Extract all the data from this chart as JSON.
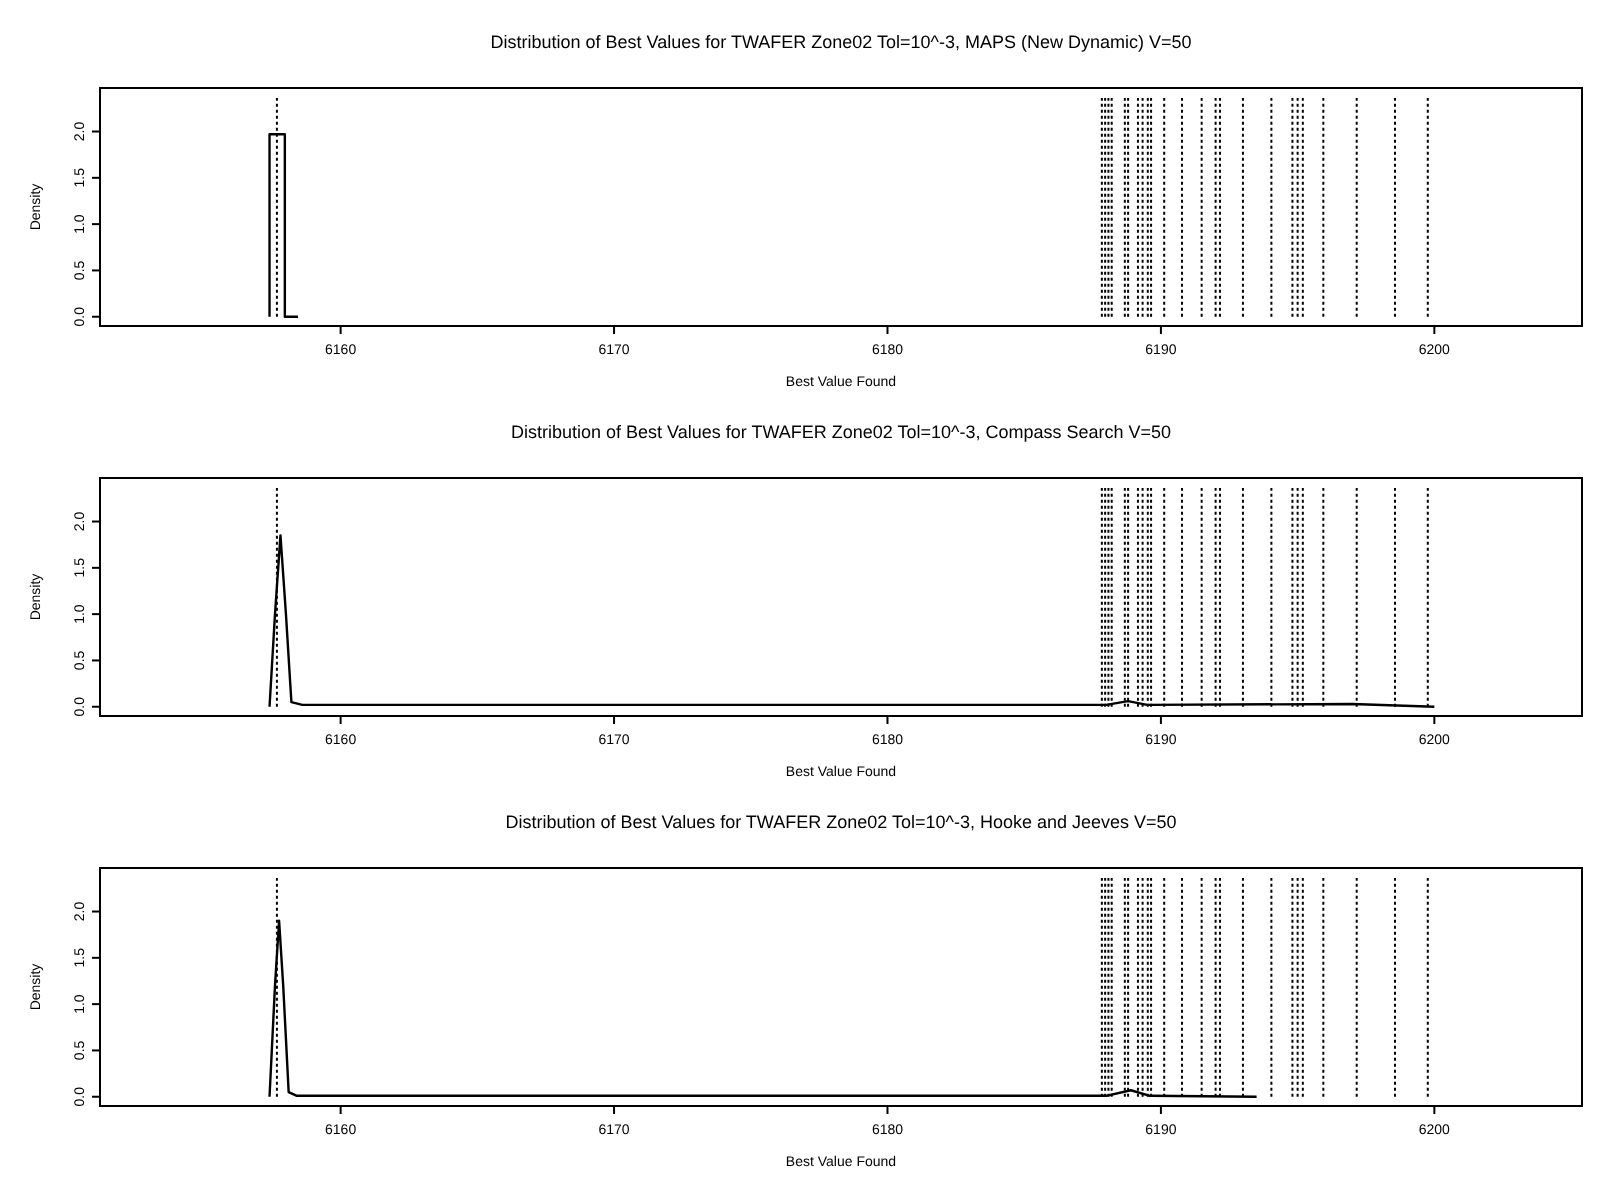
{
  "chart_data": [
    {
      "type": "line",
      "title": "Distribution of Best Values for TWAFER Zone02 Tol=10^-3, MAPS (New Dynamic) V=50",
      "xlabel": "Best Value Found",
      "ylabel": "Density",
      "xlim": [
        6151.2,
        6205.4
      ],
      "ylim": [
        -0.1,
        2.47
      ],
      "xticks": [
        6160,
        6170,
        6180,
        6190,
        6200
      ],
      "yticks": [
        {
          "value": 0,
          "label": "0.0"
        },
        {
          "value": 0.5,
          "label": "0.5"
        },
        {
          "value": 1,
          "label": "1.0"
        },
        {
          "value": 1.5,
          "label": "1.5"
        },
        {
          "value": 2,
          "label": "2.0"
        }
      ],
      "grid": false,
      "marker": "none",
      "line_style": "solid",
      "series": [
        {
          "color": "#000000",
          "x": [
            6157.4,
            6157.4,
            6157.96,
            6157.96,
            6158.44
          ],
          "values": [
            0,
            1.97,
            1.97,
            0,
            0
          ]
        }
      ],
      "ref_lines": [
        {
          "axis": "x",
          "value": 6157.67,
          "line_style": "dotted"
        },
        {
          "axis": "x",
          "value": 6187.84,
          "line_style": "dotted"
        },
        {
          "axis": "x",
          "value": 6187.96,
          "line_style": "dotted"
        },
        {
          "axis": "x",
          "value": 6188.08,
          "line_style": "dotted"
        },
        {
          "axis": "x",
          "value": 6188.2,
          "line_style": "dotted"
        },
        {
          "axis": "x",
          "value": 6188.68,
          "line_style": "dotted"
        },
        {
          "axis": "x",
          "value": 6188.8,
          "line_style": "dotted"
        },
        {
          "axis": "x",
          "value": 6189.16,
          "line_style": "dotted"
        },
        {
          "axis": "x",
          "value": 6189.33,
          "line_style": "dotted"
        },
        {
          "axis": "x",
          "value": 6189.52,
          "line_style": "dotted"
        },
        {
          "axis": "x",
          "value": 6189.64,
          "line_style": "dotted"
        },
        {
          "axis": "x",
          "value": 6190.12,
          "line_style": "dotted"
        },
        {
          "axis": "x",
          "value": 6190.77,
          "line_style": "dotted"
        },
        {
          "axis": "x",
          "value": 6191.49,
          "line_style": "dotted"
        },
        {
          "axis": "x",
          "value": 6192.0,
          "line_style": "dotted"
        },
        {
          "axis": "x",
          "value": 6192.16,
          "line_style": "dotted"
        },
        {
          "axis": "x",
          "value": 6193.0,
          "line_style": "dotted"
        },
        {
          "axis": "x",
          "value": 6194.04,
          "line_style": "dotted"
        },
        {
          "axis": "x",
          "value": 6194.81,
          "line_style": "dotted"
        },
        {
          "axis": "x",
          "value": 6195.0,
          "line_style": "dotted"
        },
        {
          "axis": "x",
          "value": 6195.19,
          "line_style": "dotted"
        },
        {
          "axis": "x",
          "value": 6195.94,
          "line_style": "dotted"
        },
        {
          "axis": "x",
          "value": 6197.16,
          "line_style": "dotted"
        },
        {
          "axis": "x",
          "value": 6198.56,
          "line_style": "dotted"
        },
        {
          "axis": "x",
          "value": 6199.76,
          "line_style": "dotted"
        }
      ]
    },
    {
      "type": "line",
      "title": "Distribution of Best Values for TWAFER Zone02 Tol=10^-3, Compass Search V=50",
      "xlabel": "Best Value Found",
      "ylabel": "Density",
      "xlim": [
        6151.2,
        6205.4
      ],
      "ylim": [
        -0.1,
        2.47
      ],
      "xticks": [
        6160,
        6170,
        6180,
        6190,
        6200
      ],
      "yticks": [
        {
          "value": 0,
          "label": "0.0"
        },
        {
          "value": 0.5,
          "label": "0.5"
        },
        {
          "value": 1,
          "label": "1.0"
        },
        {
          "value": 1.5,
          "label": "1.5"
        },
        {
          "value": 2,
          "label": "2.0"
        }
      ],
      "grid": false,
      "marker": "none",
      "line_style": "solid",
      "series": [
        {
          "color": "#000000",
          "x": [
            6157.4,
            6157.6,
            6157.8,
            6158.0,
            6158.2,
            6158.6,
            6188,
            6188.8,
            6189.5,
            6197,
            6200
          ],
          "values": [
            0,
            1.0,
            1.85,
            1.0,
            0.05,
            0.02,
            0.02,
            0.06,
            0.02,
            0.03,
            0
          ]
        }
      ],
      "ref_lines": [
        {
          "axis": "x",
          "value": 6157.67,
          "line_style": "dotted"
        },
        {
          "axis": "x",
          "value": 6187.84,
          "line_style": "dotted"
        },
        {
          "axis": "x",
          "value": 6187.96,
          "line_style": "dotted"
        },
        {
          "axis": "x",
          "value": 6188.08,
          "line_style": "dotted"
        },
        {
          "axis": "x",
          "value": 6188.2,
          "line_style": "dotted"
        },
        {
          "axis": "x",
          "value": 6188.68,
          "line_style": "dotted"
        },
        {
          "axis": "x",
          "value": 6188.8,
          "line_style": "dotted"
        },
        {
          "axis": "x",
          "value": 6189.16,
          "line_style": "dotted"
        },
        {
          "axis": "x",
          "value": 6189.33,
          "line_style": "dotted"
        },
        {
          "axis": "x",
          "value": 6189.52,
          "line_style": "dotted"
        },
        {
          "axis": "x",
          "value": 6189.64,
          "line_style": "dotted"
        },
        {
          "axis": "x",
          "value": 6190.12,
          "line_style": "dotted"
        },
        {
          "axis": "x",
          "value": 6190.77,
          "line_style": "dotted"
        },
        {
          "axis": "x",
          "value": 6191.49,
          "line_style": "dotted"
        },
        {
          "axis": "x",
          "value": 6192.0,
          "line_style": "dotted"
        },
        {
          "axis": "x",
          "value": 6192.16,
          "line_style": "dotted"
        },
        {
          "axis": "x",
          "value": 6193.0,
          "line_style": "dotted"
        },
        {
          "axis": "x",
          "value": 6194.04,
          "line_style": "dotted"
        },
        {
          "axis": "x",
          "value": 6194.81,
          "line_style": "dotted"
        },
        {
          "axis": "x",
          "value": 6195.0,
          "line_style": "dotted"
        },
        {
          "axis": "x",
          "value": 6195.19,
          "line_style": "dotted"
        },
        {
          "axis": "x",
          "value": 6195.94,
          "line_style": "dotted"
        },
        {
          "axis": "x",
          "value": 6197.16,
          "line_style": "dotted"
        },
        {
          "axis": "x",
          "value": 6198.56,
          "line_style": "dotted"
        },
        {
          "axis": "x",
          "value": 6199.76,
          "line_style": "dotted"
        }
      ]
    },
    {
      "type": "line",
      "title": "Distribution of Best Values for TWAFER Zone02 Tol=10^-3, Hooke and Jeeves V=50",
      "xlabel": "Best Value Found",
      "ylabel": "Density",
      "xlim": [
        6151.2,
        6205.4
      ],
      "ylim": [
        -0.1,
        2.47
      ],
      "xticks": [
        6160,
        6170,
        6180,
        6190,
        6200
      ],
      "yticks": [
        {
          "value": 0,
          "label": "0.0"
        },
        {
          "value": 0.5,
          "label": "0.5"
        },
        {
          "value": 1,
          "label": "1.0"
        },
        {
          "value": 1.5,
          "label": "1.5"
        },
        {
          "value": 2,
          "label": "2.0"
        }
      ],
      "grid": false,
      "marker": "none",
      "line_style": "solid",
      "series": [
        {
          "color": "#000000",
          "x": [
            6157.4,
            6157.6,
            6157.75,
            6157.9,
            6158.1,
            6158.4,
            6188,
            6188.9,
            6189.6,
            6193.5
          ],
          "values": [
            0,
            1.2,
            1.9,
            1.2,
            0.05,
            0.01,
            0.01,
            0.07,
            0.01,
            0
          ]
        }
      ],
      "ref_lines": [
        {
          "axis": "x",
          "value": 6157.67,
          "line_style": "dotted"
        },
        {
          "axis": "x",
          "value": 6187.84,
          "line_style": "dotted"
        },
        {
          "axis": "x",
          "value": 6187.96,
          "line_style": "dotted"
        },
        {
          "axis": "x",
          "value": 6188.08,
          "line_style": "dotted"
        },
        {
          "axis": "x",
          "value": 6188.2,
          "line_style": "dotted"
        },
        {
          "axis": "x",
          "value": 6188.68,
          "line_style": "dotted"
        },
        {
          "axis": "x",
          "value": 6188.8,
          "line_style": "dotted"
        },
        {
          "axis": "x",
          "value": 6189.16,
          "line_style": "dotted"
        },
        {
          "axis": "x",
          "value": 6189.33,
          "line_style": "dotted"
        },
        {
          "axis": "x",
          "value": 6189.52,
          "line_style": "dotted"
        },
        {
          "axis": "x",
          "value": 6189.64,
          "line_style": "dotted"
        },
        {
          "axis": "x",
          "value": 6190.12,
          "line_style": "dotted"
        },
        {
          "axis": "x",
          "value": 6190.77,
          "line_style": "dotted"
        },
        {
          "axis": "x",
          "value": 6191.49,
          "line_style": "dotted"
        },
        {
          "axis": "x",
          "value": 6192.0,
          "line_style": "dotted"
        },
        {
          "axis": "x",
          "value": 6192.16,
          "line_style": "dotted"
        },
        {
          "axis": "x",
          "value": 6193.0,
          "line_style": "dotted"
        },
        {
          "axis": "x",
          "value": 6194.04,
          "line_style": "dotted"
        },
        {
          "axis": "x",
          "value": 6194.81,
          "line_style": "dotted"
        },
        {
          "axis": "x",
          "value": 6195.0,
          "line_style": "dotted"
        },
        {
          "axis": "x",
          "value": 6195.19,
          "line_style": "dotted"
        },
        {
          "axis": "x",
          "value": 6195.94,
          "line_style": "dotted"
        },
        {
          "axis": "x",
          "value": 6197.16,
          "line_style": "dotted"
        },
        {
          "axis": "x",
          "value": 6198.56,
          "line_style": "dotted"
        },
        {
          "axis": "x",
          "value": 6199.76,
          "line_style": "dotted"
        }
      ]
    }
  ]
}
